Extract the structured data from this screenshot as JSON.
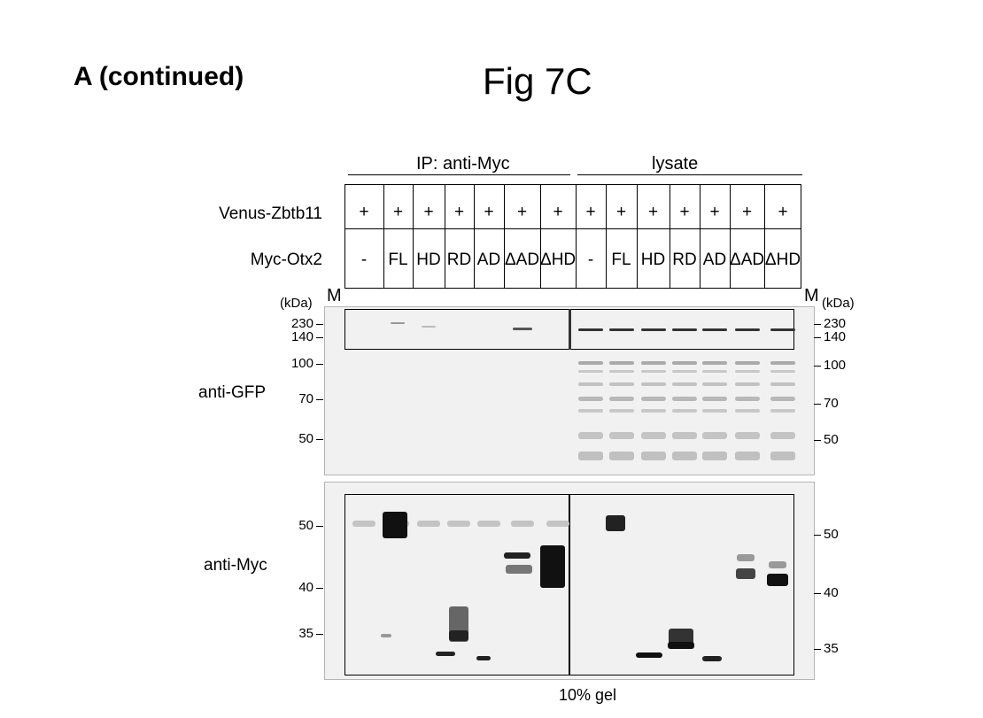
{
  "panel_label": "A (continued)",
  "figure_title": "Fig 7C",
  "groups": {
    "ip": "IP: anti-Myc",
    "lysate": "lysate"
  },
  "rows": {
    "venus": {
      "label": "Venus-Zbtb11",
      "values": [
        "+",
        "+",
        "+",
        "+",
        "+",
        "+",
        "+",
        "+",
        "+",
        "+",
        "+",
        "+",
        "+",
        "+"
      ]
    },
    "myc": {
      "label": "Myc-Otx2",
      "values": [
        "-",
        "FL",
        "HD",
        "RD",
        "AD",
        "ΔAD",
        "ΔHD",
        "-",
        "FL",
        "HD",
        "RD",
        "AD",
        "ΔAD",
        "ΔHD"
      ]
    }
  },
  "marker": {
    "label": "M",
    "unit": "(kDa)"
  },
  "blots": {
    "gfp": {
      "label": "anti-GFP",
      "left_ticks": [
        "230",
        "140",
        "100",
        "70",
        "50"
      ],
      "right_ticks": [
        "230",
        "140",
        "100",
        "70",
        "50"
      ]
    },
    "myc": {
      "label": "anti-Myc",
      "left_ticks": [
        "50",
        "40",
        "35"
      ],
      "right_ticks": [
        "50",
        "40",
        "35"
      ]
    }
  },
  "footer": "10% gel"
}
